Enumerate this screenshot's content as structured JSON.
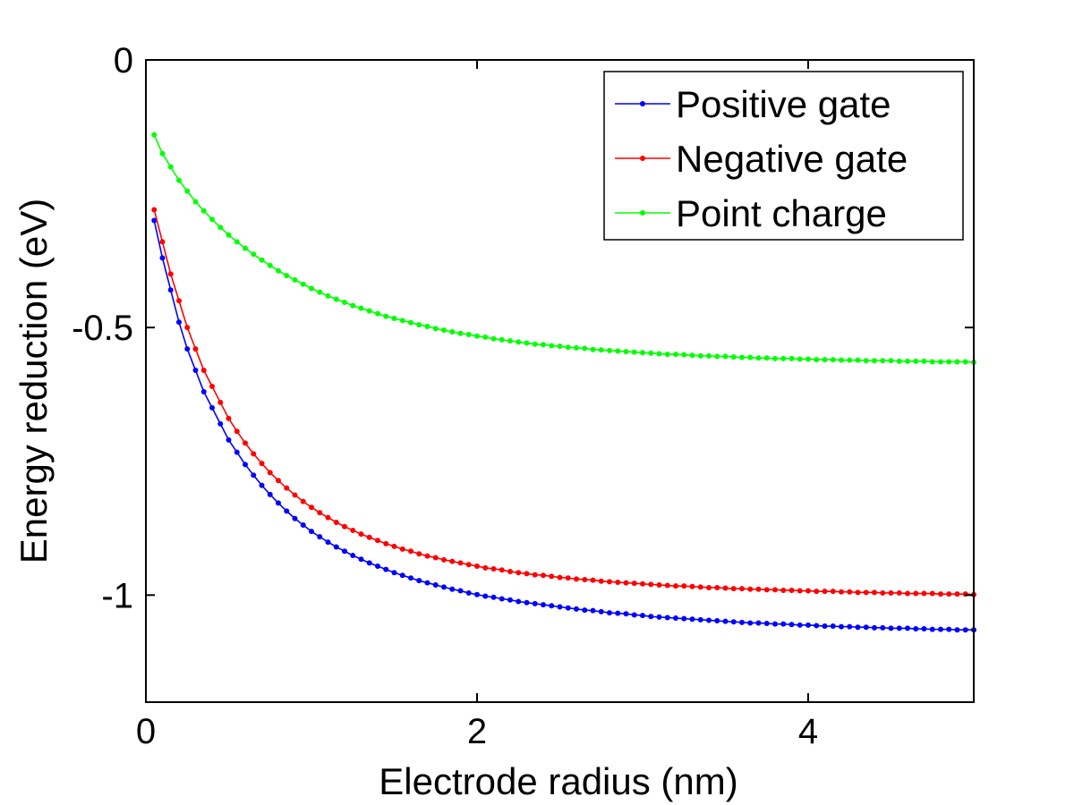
{
  "chart_data": {
    "type": "line",
    "title": "",
    "xlabel": "Electrode radius (nm)",
    "ylabel": "Energy reduction (eV)",
    "xlim": [
      0,
      5
    ],
    "ylim": [
      -1.2,
      0
    ],
    "xticks": [
      0,
      2,
      4
    ],
    "xtick_labels": [
      "0",
      "2",
      "4"
    ],
    "yticks": [
      0,
      -0.5,
      -1
    ],
    "ytick_labels": [
      "0",
      "-0.5",
      "-1"
    ],
    "grid": false,
    "legend_position": "top-right",
    "series": [
      {
        "name": "Positive gate",
        "color": "#0000ff",
        "x_start": 0.05,
        "x_end": 5.0,
        "x_step": 0.05,
        "y": [
          -0.3,
          -0.37,
          -0.43,
          -0.49,
          -0.54,
          -0.58,
          -0.62,
          -0.65,
          -0.68,
          -0.71,
          -0.733,
          -0.756,
          -0.776,
          -0.795,
          -0.812,
          -0.828,
          -0.843,
          -0.857,
          -0.869,
          -0.881,
          -0.891,
          -0.901,
          -0.91,
          -0.918,
          -0.926,
          -0.933,
          -0.94,
          -0.946,
          -0.952,
          -0.958,
          -0.963,
          -0.968,
          -0.973,
          -0.977,
          -0.981,
          -0.985,
          -0.989,
          -0.992,
          -0.996,
          -0.999,
          -1.002,
          -1.004,
          -1.007,
          -1.009,
          -1.012,
          -1.014,
          -1.016,
          -1.018,
          -1.02,
          -1.022,
          -1.024,
          -1.026,
          -1.028,
          -1.029,
          -1.031,
          -1.033,
          -1.034,
          -1.035,
          -1.037,
          -1.038,
          -1.04,
          -1.041,
          -1.042,
          -1.043,
          -1.044,
          -1.045,
          -1.046,
          -1.047,
          -1.048,
          -1.049,
          -1.05,
          -1.051,
          -1.052,
          -1.052,
          -1.053,
          -1.054,
          -1.054,
          -1.055,
          -1.056,
          -1.056,
          -1.057,
          -1.058,
          -1.058,
          -1.059,
          -1.059,
          -1.06,
          -1.06,
          -1.061,
          -1.061,
          -1.062,
          -1.062,
          -1.062,
          -1.063,
          -1.063,
          -1.064,
          -1.064,
          -1.064,
          -1.065,
          -1.065,
          -1.065
        ]
      },
      {
        "name": "Negative gate",
        "color": "#ff0000",
        "x_start": 0.05,
        "x_end": 5.0,
        "x_step": 0.05,
        "y": [
          -0.28,
          -0.34,
          -0.4,
          -0.45,
          -0.5,
          -0.54,
          -0.58,
          -0.61,
          -0.64,
          -0.67,
          -0.694,
          -0.716,
          -0.736,
          -0.754,
          -0.771,
          -0.786,
          -0.8,
          -0.813,
          -0.825,
          -0.836,
          -0.846,
          -0.855,
          -0.864,
          -0.872,
          -0.879,
          -0.886,
          -0.892,
          -0.898,
          -0.904,
          -0.909,
          -0.914,
          -0.918,
          -0.923,
          -0.927,
          -0.93,
          -0.934,
          -0.937,
          -0.94,
          -0.943,
          -0.946,
          -0.949,
          -0.951,
          -0.953,
          -0.956,
          -0.958,
          -0.96,
          -0.962,
          -0.963,
          -0.965,
          -0.967,
          -0.968,
          -0.97,
          -0.971,
          -0.972,
          -0.974,
          -0.975,
          -0.976,
          -0.977,
          -0.978,
          -0.979,
          -0.98,
          -0.981,
          -0.982,
          -0.983,
          -0.983,
          -0.984,
          -0.985,
          -0.986,
          -0.986,
          -0.987,
          -0.988,
          -0.988,
          -0.989,
          -0.989,
          -0.99,
          -0.99,
          -0.991,
          -0.991,
          -0.992,
          -0.992,
          -0.993,
          -0.993,
          -0.993,
          -0.994,
          -0.994,
          -0.995,
          -0.995,
          -0.995,
          -0.996,
          -0.996,
          -0.996,
          -0.997,
          -0.997,
          -0.997,
          -0.997,
          -0.998,
          -0.998,
          -0.998,
          -0.998,
          -0.999
        ]
      },
      {
        "name": "Point charge",
        "color": "#00ff00",
        "x_start": 0.05,
        "x_end": 5.0,
        "x_step": 0.05,
        "y": [
          -0.14,
          -0.175,
          -0.2,
          -0.225,
          -0.245,
          -0.265,
          -0.282,
          -0.298,
          -0.313,
          -0.327,
          -0.34,
          -0.352,
          -0.363,
          -0.374,
          -0.384,
          -0.394,
          -0.403,
          -0.411,
          -0.419,
          -0.427,
          -0.434,
          -0.441,
          -0.447,
          -0.453,
          -0.459,
          -0.464,
          -0.469,
          -0.474,
          -0.479,
          -0.483,
          -0.487,
          -0.491,
          -0.495,
          -0.498,
          -0.502,
          -0.505,
          -0.508,
          -0.511,
          -0.513,
          -0.516,
          -0.518,
          -0.521,
          -0.523,
          -0.525,
          -0.527,
          -0.529,
          -0.531,
          -0.532,
          -0.534,
          -0.535,
          -0.537,
          -0.538,
          -0.539,
          -0.541,
          -0.542,
          -0.543,
          -0.544,
          -0.545,
          -0.546,
          -0.547,
          -0.548,
          -0.549,
          -0.55,
          -0.55,
          -0.551,
          -0.552,
          -0.553,
          -0.553,
          -0.554,
          -0.554,
          -0.555,
          -0.556,
          -0.556,
          -0.557,
          -0.557,
          -0.558,
          -0.558,
          -0.558,
          -0.559,
          -0.559,
          -0.56,
          -0.56,
          -0.56,
          -0.561,
          -0.561,
          -0.561,
          -0.562,
          -0.562,
          -0.562,
          -0.562,
          -0.563,
          -0.563,
          -0.563,
          -0.563,
          -0.564,
          -0.564,
          -0.564,
          -0.564,
          -0.564,
          -0.565
        ]
      }
    ]
  }
}
